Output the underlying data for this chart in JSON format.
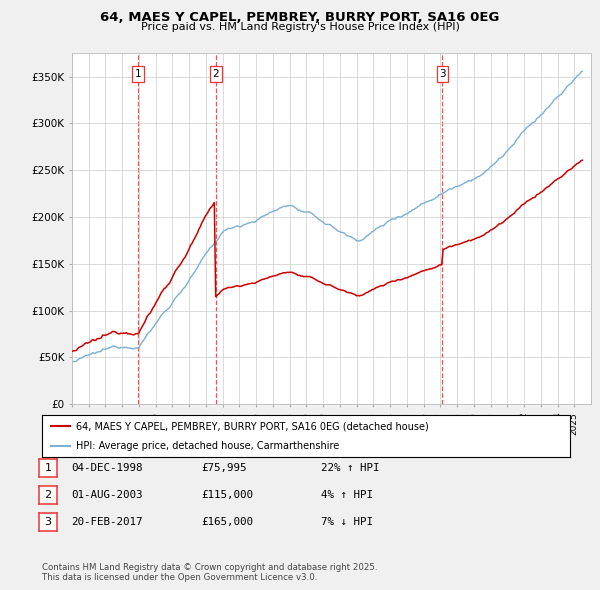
{
  "title": "64, MAES Y CAPEL, PEMBREY, BURRY PORT, SA16 0EG",
  "subtitle": "Price paid vs. HM Land Registry's House Price Index (HPI)",
  "legend_line1": "64, MAES Y CAPEL, PEMBREY, BURRY PORT, SA16 0EG (detached house)",
  "legend_line2": "HPI: Average price, detached house, Carmarthenshire",
  "footer": "Contains HM Land Registry data © Crown copyright and database right 2025.\nThis data is licensed under the Open Government Licence v3.0.",
  "transactions": [
    {
      "num": 1,
      "date": "04-DEC-1998",
      "price": 75995,
      "pct": "22%",
      "dir": "↑"
    },
    {
      "num": 2,
      "date": "01-AUG-2003",
      "price": 115000,
      "pct": "4%",
      "dir": "↑"
    },
    {
      "num": 3,
      "date": "20-FEB-2017",
      "price": 165000,
      "pct": "7%",
      "dir": "↓"
    }
  ],
  "vline_dates": [
    1998.92,
    2003.58,
    2017.13
  ],
  "ylim": [
    0,
    375000
  ],
  "yticks": [
    0,
    50000,
    100000,
    150000,
    200000,
    250000,
    300000,
    350000
  ],
  "price_color": "#cc0000",
  "hpi_color": "#7ab0d4",
  "vline_color": "#ee3333",
  "background_color": "#f0f0f0",
  "plot_bg_color": "#ffffff",
  "grid_color": "#cccccc"
}
